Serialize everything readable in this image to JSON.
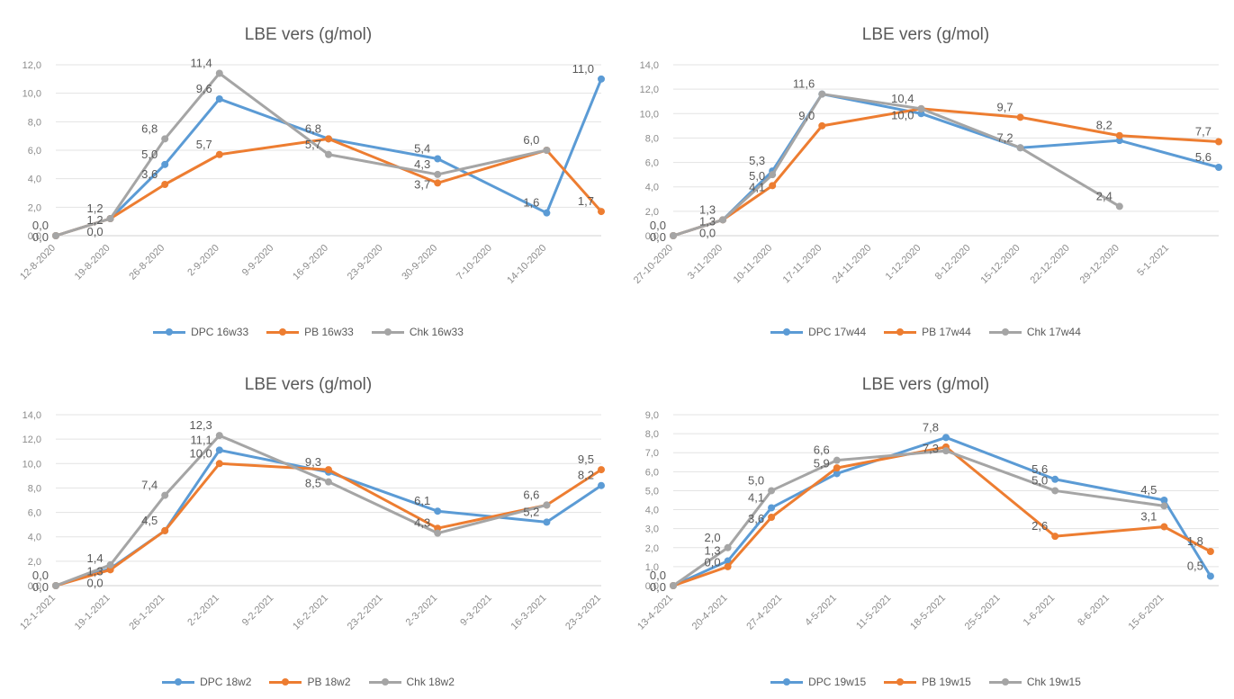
{
  "chart_data": [
    {
      "type": "line",
      "title": "LBE vers (g/mol)",
      "categories": [
        "12-8-2020",
        "19-8-2020",
        "26-8-2020",
        "2-9-2020",
        "9-9-2020",
        "16-9-2020",
        "23-9-2020",
        "30-9-2020",
        "7-10-2020",
        "14-10-2020",
        ""
      ],
      "ylim": [
        0,
        12
      ],
      "yticks": [
        "0,0",
        "2,0",
        "4,0",
        "6,0",
        "8,0",
        "10,0",
        "12,0"
      ],
      "grid": true,
      "legend": "bottom",
      "colors": [
        "#5b9bd5",
        "#ed7d31",
        "#a5a5a5"
      ],
      "series": [
        {
          "name": "DPC 16w33",
          "color": "#5b9bd5",
          "x": [
            0,
            1,
            2,
            3,
            5,
            7,
            9,
            10
          ],
          "values": [
            0.0,
            1.2,
            5.0,
            9.6,
            6.8,
            5.4,
            1.6,
            11.0
          ]
        },
        {
          "name": "PB 16w33",
          "color": "#ed7d31",
          "x": [
            0,
            1,
            2,
            3,
            5,
            7,
            9,
            10
          ],
          "values": [
            0.0,
            1.2,
            3.6,
            5.7,
            6.8,
            3.7,
            6.0,
            1.7
          ]
        },
        {
          "name": "Chk 16w33",
          "color": "#a5a5a5",
          "x": [
            0,
            1,
            2,
            3,
            5,
            7,
            9
          ],
          "values": [
            0.0,
            1.2,
            6.8,
            11.4,
            5.7,
            4.3,
            6.0
          ]
        }
      ],
      "labels": [
        {
          "x": 0,
          "y": 0.0,
          "text": "0,0"
        },
        {
          "x": 0,
          "y": 0.0,
          "text": "0,0"
        },
        {
          "x": 1,
          "y": 1.2,
          "text": "1,2"
        },
        {
          "x": 1,
          "y": 1.2,
          "text": "1,2"
        },
        {
          "x": 1,
          "y": 1.2,
          "text": "0,0"
        },
        {
          "x": 2,
          "y": 6.8,
          "text": "6,8"
        },
        {
          "x": 2,
          "y": 5.0,
          "text": "5,0"
        },
        {
          "x": 2,
          "y": 3.6,
          "text": "3,6"
        },
        {
          "x": 3,
          "y": 11.4,
          "text": "11,4"
        },
        {
          "x": 3,
          "y": 9.6,
          "text": "9,6"
        },
        {
          "x": 3,
          "y": 5.7,
          "text": "5,7"
        },
        {
          "x": 5,
          "y": 6.8,
          "text": "6,8"
        },
        {
          "x": 5,
          "y": 5.7,
          "text": "5,7"
        },
        {
          "x": 7,
          "y": 5.4,
          "text": "5,4"
        },
        {
          "x": 7,
          "y": 4.3,
          "text": "4,3"
        },
        {
          "x": 7,
          "y": 3.7,
          "text": "3,7"
        },
        {
          "x": 9,
          "y": 6.0,
          "text": "6,0"
        },
        {
          "x": 9,
          "y": 1.6,
          "text": "1,6"
        },
        {
          "x": 10,
          "y": 11.0,
          "text": "11,0"
        },
        {
          "x": 10,
          "y": 1.7,
          "text": "1,7"
        }
      ]
    },
    {
      "type": "line",
      "title": "LBE vers (g/mol)",
      "categories": [
        "27-10-2020",
        "3-11-2020",
        "10-11-2020",
        "17-11-2020",
        "24-11-2020",
        "1-12-2020",
        "8-12-2020",
        "15-12-2020",
        "22-12-2020",
        "29-12-2020",
        "5-1-2021",
        ""
      ],
      "ylim": [
        0,
        14
      ],
      "yticks": [
        "0,0",
        "2,0",
        "4,0",
        "6,0",
        "8,0",
        "10,0",
        "12,0",
        "14,0"
      ],
      "grid": true,
      "legend": "bottom",
      "colors": [
        "#5b9bd5",
        "#ed7d31",
        "#a5a5a5"
      ],
      "series": [
        {
          "name": "DPC 17w44",
          "color": "#5b9bd5",
          "x": [
            0,
            1,
            2,
            3,
            5,
            7,
            9,
            11
          ],
          "values": [
            0.0,
            1.3,
            5.3,
            11.6,
            10.0,
            7.2,
            7.8,
            5.6
          ]
        },
        {
          "name": "PB 17w44",
          "color": "#ed7d31",
          "x": [
            0,
            1,
            2,
            3,
            5,
            7,
            9,
            11
          ],
          "values": [
            0.0,
            1.3,
            4.1,
            9.0,
            10.4,
            9.7,
            8.2,
            7.7
          ]
        },
        {
          "name": "Chk 17w44",
          "color": "#a5a5a5",
          "x": [
            0,
            1,
            2,
            3,
            5,
            7,
            9
          ],
          "values": [
            0.0,
            1.3,
            5.0,
            11.6,
            10.4,
            7.2,
            2.4
          ]
        }
      ],
      "labels": [
        {
          "x": 0,
          "y": 0.0,
          "text": "0,0"
        },
        {
          "x": 0,
          "y": 0.0,
          "text": "0,0"
        },
        {
          "x": 1,
          "y": 1.3,
          "text": "1,3"
        },
        {
          "x": 1,
          "y": 1.3,
          "text": "1,3"
        },
        {
          "x": 1,
          "y": 1.3,
          "text": "0,0"
        },
        {
          "x": 2,
          "y": 5.3,
          "text": "5,3"
        },
        {
          "x": 2,
          "y": 5.0,
          "text": "5,0"
        },
        {
          "x": 2,
          "y": 4.1,
          "text": "4,1"
        },
        {
          "x": 3,
          "y": 11.6,
          "text": "11,6"
        },
        {
          "x": 3,
          "y": 9.0,
          "text": "9,0"
        },
        {
          "x": 5,
          "y": 10.4,
          "text": "10,4"
        },
        {
          "x": 5,
          "y": 10.0,
          "text": "10,0"
        },
        {
          "x": 7,
          "y": 9.7,
          "text": "9,7"
        },
        {
          "x": 7,
          "y": 7.2,
          "text": "7,2"
        },
        {
          "x": 9,
          "y": 8.2,
          "text": "8,2"
        },
        {
          "x": 9,
          "y": 2.4,
          "text": "2,4"
        },
        {
          "x": 11,
          "y": 7.7,
          "text": "7,7"
        },
        {
          "x": 11,
          "y": 5.6,
          "text": "5,6"
        }
      ]
    },
    {
      "type": "line",
      "title": "LBE vers (g/mol)",
      "categories": [
        "12-1-2021",
        "19-1-2021",
        "26-1-2021",
        "2-2-2021",
        "9-2-2021",
        "16-2-2021",
        "23-2-2021",
        "2-3-2021",
        "9-3-2021",
        "16-3-2021",
        "23-3-2021"
      ],
      "ylim": [
        0,
        14
      ],
      "yticks": [
        "0,0",
        "2,0",
        "4,0",
        "6,0",
        "8,0",
        "10,0",
        "12,0",
        "14,0"
      ],
      "grid": true,
      "legend": "bottom",
      "colors": [
        "#5b9bd5",
        "#ed7d31",
        "#a5a5a5"
      ],
      "series": [
        {
          "name": "DPC 18w2",
          "color": "#5b9bd5",
          "x": [
            0,
            1,
            2,
            3,
            5,
            7,
            9,
            10
          ],
          "values": [
            0.0,
            1.4,
            4.5,
            11.1,
            9.3,
            6.1,
            5.2,
            8.2
          ]
        },
        {
          "name": "PB 18w2",
          "color": "#ed7d31",
          "x": [
            0,
            1,
            2,
            3,
            5,
            7,
            9,
            10
          ],
          "values": [
            0.0,
            1.3,
            4.5,
            10.0,
            9.5,
            4.7,
            6.6,
            9.5
          ]
        },
        {
          "name": "Chk 18w2",
          "color": "#a5a5a5",
          "x": [
            0,
            1,
            2,
            3,
            5,
            7,
            9
          ],
          "values": [
            0.0,
            1.7,
            7.4,
            12.3,
            8.5,
            4.3,
            6.6
          ]
        }
      ],
      "labels": [
        {
          "x": 0,
          "y": 0.0,
          "text": "0,0"
        },
        {
          "x": 0,
          "y": 0.0,
          "text": "0,0"
        },
        {
          "x": 1,
          "y": 1.4,
          "text": "1,4"
        },
        {
          "x": 1,
          "y": 1.3,
          "text": "1,3"
        },
        {
          "x": 1,
          "y": 1.3,
          "text": "0,0"
        },
        {
          "x": 2,
          "y": 7.4,
          "text": "7,4"
        },
        {
          "x": 2,
          "y": 4.5,
          "text": "4,5"
        },
        {
          "x": 3,
          "y": 12.3,
          "text": "12,3"
        },
        {
          "x": 3,
          "y": 11.1,
          "text": "11,1"
        },
        {
          "x": 3,
          "y": 10.0,
          "text": "10,0"
        },
        {
          "x": 5,
          "y": 9.3,
          "text": "9,3"
        },
        {
          "x": 5,
          "y": 8.5,
          "text": "8,5"
        },
        {
          "x": 7,
          "y": 6.1,
          "text": "6,1"
        },
        {
          "x": 7,
          "y": 4.3,
          "text": "4,3"
        },
        {
          "x": 9,
          "y": 6.6,
          "text": "6,6"
        },
        {
          "x": 9,
          "y": 5.2,
          "text": "5,2"
        },
        {
          "x": 10,
          "y": 9.5,
          "text": "9,5"
        },
        {
          "x": 10,
          "y": 8.2,
          "text": "8,2"
        }
      ]
    },
    {
      "type": "line",
      "title": "LBE vers (g/mol)",
      "categories": [
        "13-4-2021",
        "20-4-2021",
        "27-4-2021",
        "4-5-2021",
        "11-5-2021",
        "18-5-2021",
        "25-5-2021",
        "1-6-2021",
        "8-6-2021",
        "15-6-2021",
        ""
      ],
      "ylim": [
        0,
        9
      ],
      "yticks": [
        "0,0",
        "1,0",
        "2,0",
        "3,0",
        "4,0",
        "5,0",
        "6,0",
        "7,0",
        "8,0",
        "9,0"
      ],
      "grid": true,
      "legend": "bottom",
      "colors": [
        "#5b9bd5",
        "#ed7d31",
        "#a5a5a5"
      ],
      "series": [
        {
          "name": "DPC 19w15",
          "color": "#5b9bd5",
          "x": [
            0,
            1,
            1.8,
            3,
            5,
            7,
            9,
            9.85
          ],
          "values": [
            0.0,
            1.3,
            4.1,
            5.9,
            7.8,
            5.6,
            4.5,
            0.5
          ]
        },
        {
          "name": "PB 19w15",
          "color": "#ed7d31",
          "x": [
            0,
            1,
            1.8,
            3,
            5,
            7,
            9,
            9.85
          ],
          "values": [
            0.0,
            1.0,
            3.6,
            6.2,
            7.3,
            2.6,
            3.1,
            1.8
          ]
        },
        {
          "name": "Chk 19w15",
          "color": "#a5a5a5",
          "x": [
            0,
            1,
            1.8,
            3,
            5,
            7,
            9
          ],
          "values": [
            0.0,
            2.0,
            5.0,
            6.6,
            7.1,
            5.0,
            4.2
          ]
        }
      ],
      "labels": [
        {
          "x": 0,
          "y": 0.0,
          "text": "0,0"
        },
        {
          "x": 0,
          "y": 0.0,
          "text": "0,0"
        },
        {
          "x": 1,
          "y": 2.0,
          "text": "2,0"
        },
        {
          "x": 1,
          "y": 1.3,
          "text": "1,3"
        },
        {
          "x": 1,
          "y": 1.3,
          "text": "0,0"
        },
        {
          "x": 1.8,
          "y": 5.0,
          "text": "5,0"
        },
        {
          "x": 1.8,
          "y": 4.1,
          "text": "4,1"
        },
        {
          "x": 1.8,
          "y": 3.6,
          "text": "3,6"
        },
        {
          "x": 3,
          "y": 6.6,
          "text": "6,6"
        },
        {
          "x": 3,
          "y": 5.9,
          "text": "5,9"
        },
        {
          "x": 5,
          "y": 7.8,
          "text": "7,8"
        },
        {
          "x": 5,
          "y": 7.3,
          "text": "7,3"
        },
        {
          "x": 7,
          "y": 5.6,
          "text": "5,6"
        },
        {
          "x": 7,
          "y": 5.0,
          "text": "5,0"
        },
        {
          "x": 7,
          "y": 2.6,
          "text": "2,6"
        },
        {
          "x": 9,
          "y": 4.5,
          "text": "4,5"
        },
        {
          "x": 9,
          "y": 3.1,
          "text": "3,1"
        },
        {
          "x": 9.85,
          "y": 1.8,
          "text": "1,8"
        },
        {
          "x": 9.85,
          "y": 0.5,
          "text": "0,5"
        }
      ]
    }
  ]
}
